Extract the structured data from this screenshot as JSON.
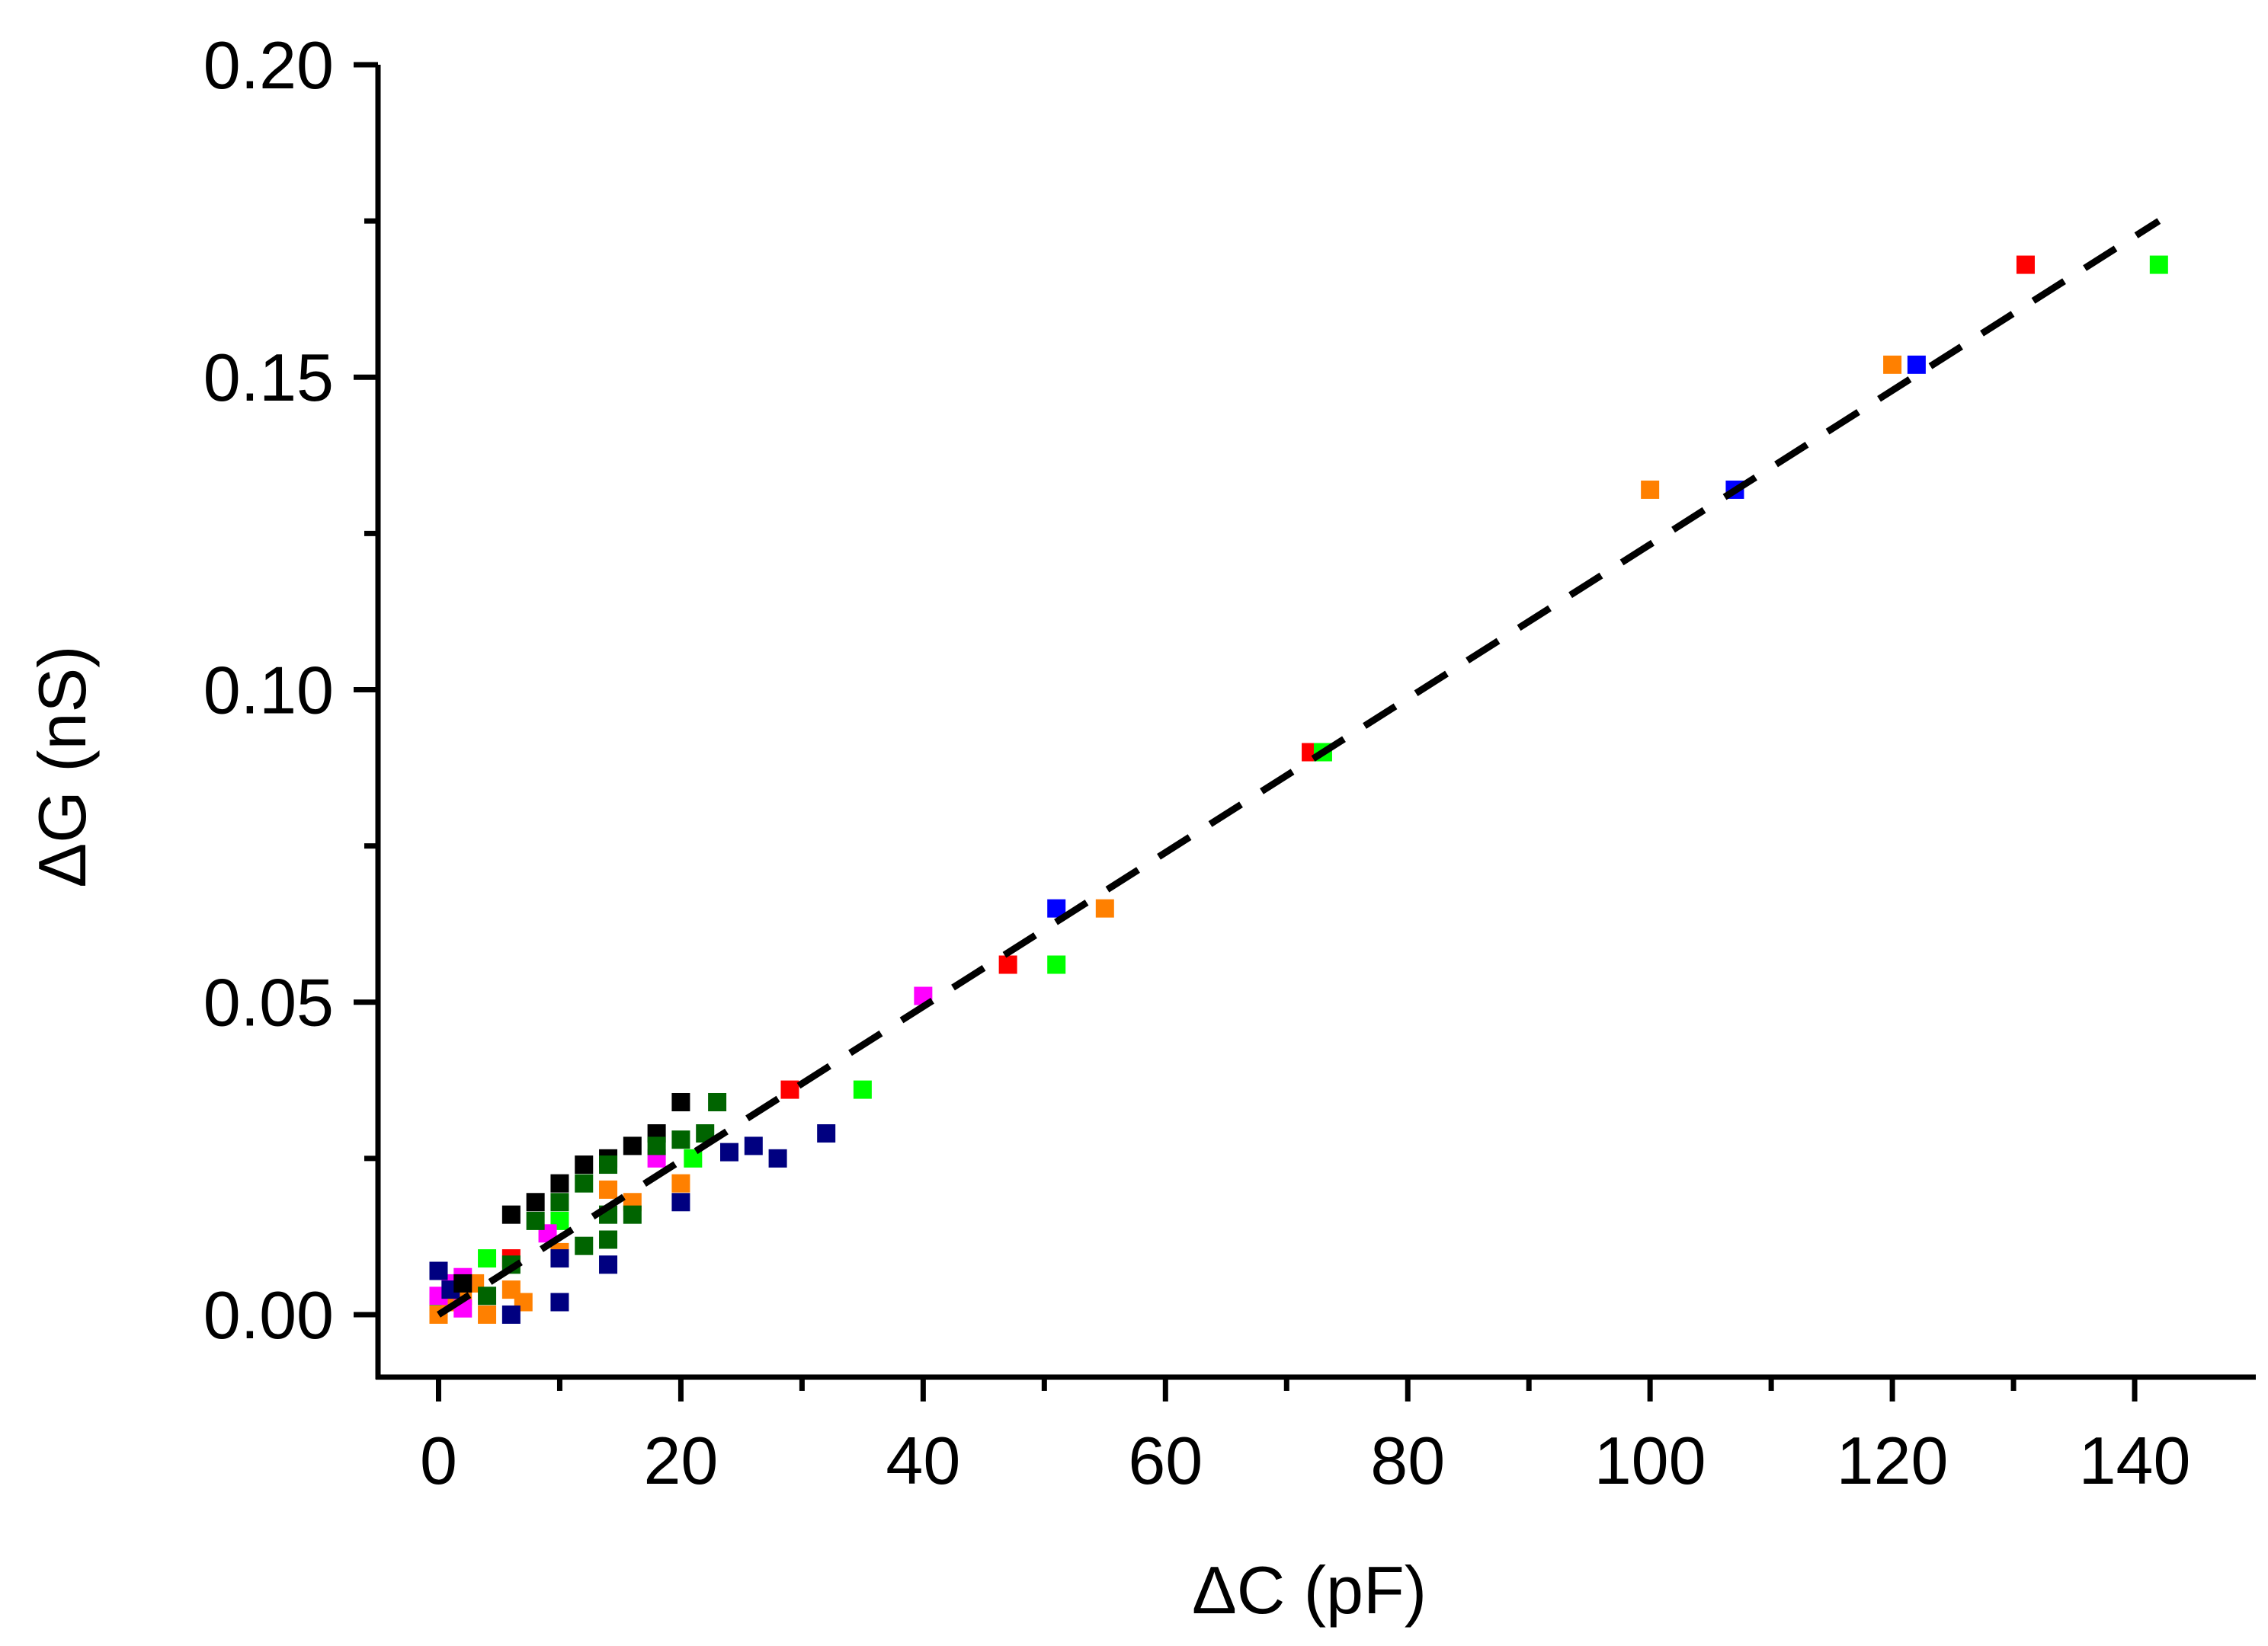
{
  "chart_data": {
    "type": "scatter",
    "title": "",
    "xlabel": "ΔC (pF)",
    "ylabel": "ΔG (nS)",
    "xlim": [
      -5,
      150
    ],
    "ylim": [
      -0.01,
      0.2
    ],
    "x_ticks": [
      0,
      20,
      40,
      60,
      80,
      100,
      120,
      140
    ],
    "x_tick_labels": [
      "0",
      "20",
      "40",
      "60",
      "80",
      "100",
      "120",
      "140"
    ],
    "y_ticks": [
      0.0,
      0.05,
      0.1,
      0.15,
      0.2
    ],
    "y_tick_labels": [
      "0.00",
      "0.05",
      "0.10",
      "0.15",
      "0.20"
    ],
    "grid": false,
    "legend": "none",
    "fit_line": {
      "style": "dashed",
      "color": "#000000",
      "x": [
        0,
        142
      ],
      "y": [
        0.0,
        0.175
      ]
    },
    "series": [
      {
        "name": "red",
        "color": "#ff0000",
        "points": [
          [
            0,
            0.001
          ],
          [
            6,
            0.009
          ],
          [
            29,
            0.036
          ],
          [
            47,
            0.056
          ],
          [
            72,
            0.09
          ],
          [
            131,
            0.168
          ]
        ]
      },
      {
        "name": "green",
        "color": "#00ff00",
        "points": [
          [
            0,
            0.002
          ],
          [
            4,
            0.009
          ],
          [
            10,
            0.015
          ],
          [
            21,
            0.025
          ],
          [
            35,
            0.036
          ],
          [
            51,
            0.056
          ],
          [
            73,
            0.09
          ],
          [
            142,
            0.168
          ]
        ]
      },
      {
        "name": "blue",
        "color": "#0000ff",
        "points": [
          [
            51,
            0.065
          ],
          [
            107,
            0.132
          ],
          [
            122,
            0.152
          ]
        ]
      },
      {
        "name": "orange",
        "color": "#ff8000",
        "points": [
          [
            0,
            0.0
          ],
          [
            1,
            0.002
          ],
          [
            2,
            0.003
          ],
          [
            3,
            0.005
          ],
          [
            4,
            0.0
          ],
          [
            6,
            0.004
          ],
          [
            7,
            0.002
          ],
          [
            10,
            0.01
          ],
          [
            14,
            0.02
          ],
          [
            16,
            0.018
          ],
          [
            20,
            0.021
          ],
          [
            55,
            0.065
          ],
          [
            100,
            0.132
          ],
          [
            120,
            0.152
          ]
        ]
      },
      {
        "name": "magenta",
        "color": "#ff00ff",
        "points": [
          [
            0,
            0.003
          ],
          [
            1,
            0.005
          ],
          [
            2,
            0.006
          ],
          [
            2,
            0.001
          ],
          [
            9,
            0.013
          ],
          [
            18,
            0.025
          ],
          [
            40,
            0.051
          ]
        ]
      },
      {
        "name": "navy",
        "color": "#000080",
        "points": [
          [
            0,
            0.007
          ],
          [
            1,
            0.004
          ],
          [
            6,
            0.0
          ],
          [
            10,
            0.002
          ],
          [
            10,
            0.009
          ],
          [
            14,
            0.008
          ],
          [
            20,
            0.018
          ],
          [
            24,
            0.026
          ],
          [
            26,
            0.027
          ],
          [
            28,
            0.025
          ],
          [
            32,
            0.029
          ]
        ]
      },
      {
        "name": "black",
        "color": "#000000",
        "points": [
          [
            2,
            0.005
          ],
          [
            6,
            0.016
          ],
          [
            8,
            0.018
          ],
          [
            10,
            0.021
          ],
          [
            12,
            0.024
          ],
          [
            14,
            0.025
          ],
          [
            16,
            0.027
          ],
          [
            18,
            0.029
          ],
          [
            20,
            0.034
          ]
        ]
      },
      {
        "name": "dark green",
        "color": "#006400",
        "points": [
          [
            4,
            0.003
          ],
          [
            6,
            0.008
          ],
          [
            8,
            0.015
          ],
          [
            10,
            0.018
          ],
          [
            12,
            0.011
          ],
          [
            12,
            0.021
          ],
          [
            14,
            0.012
          ],
          [
            14,
            0.016
          ],
          [
            14,
            0.024
          ],
          [
            16,
            0.016
          ],
          [
            18,
            0.027
          ],
          [
            20,
            0.028
          ],
          [
            22,
            0.029
          ],
          [
            23,
            0.034
          ]
        ]
      }
    ]
  }
}
